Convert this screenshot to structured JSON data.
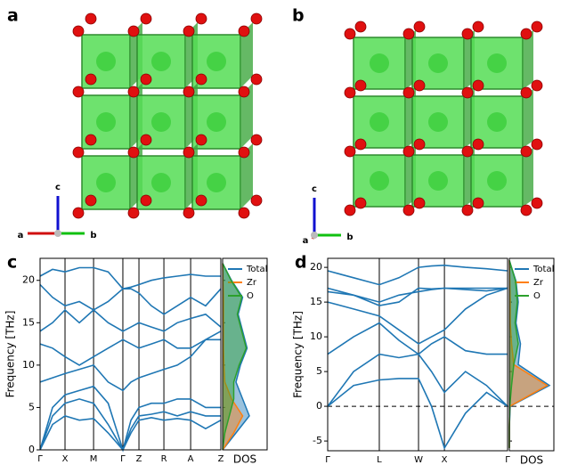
{
  "structures": [
    {
      "label": "a",
      "axes": [
        "c",
        "a",
        "b"
      ]
    },
    {
      "label": "b",
      "axes": [
        "c",
        "a",
        "b"
      ]
    }
  ],
  "chart_data": [
    {
      "type": "line",
      "panel_label": "c",
      "ylabel": "Frequency [THz]",
      "xlim": [
        0,
        1
      ],
      "ylim": [
        0,
        22.6
      ],
      "yticks": [
        0,
        5,
        10,
        15,
        20
      ],
      "zero_line": false,
      "xticks": [
        {
          "value": 0,
          "label": "Γ"
        },
        {
          "value": 0.138,
          "label": "X"
        },
        {
          "value": 0.296,
          "label": "M"
        },
        {
          "value": 0.458,
          "label": "Γ"
        },
        {
          "value": 0.547,
          "label": "Z"
        },
        {
          "value": 0.685,
          "label": "R"
        },
        {
          "value": 0.833,
          "label": "A"
        },
        {
          "value": 1,
          "label": "Z"
        }
      ],
      "x": [
        0,
        0.069,
        0.138,
        0.217,
        0.296,
        0.377,
        0.458,
        0.503,
        0.547,
        0.616,
        0.685,
        0.759,
        0.833,
        0.916,
        1
      ],
      "series": [
        {
          "color": "#1f77b4",
          "values": [
            0,
            3,
            4,
            3.5,
            3.7,
            2,
            0,
            2,
            3.5,
            3.8,
            3.5,
            3.7,
            3.5,
            2.5,
            3.5
          ]
        },
        {
          "color": "#1f77b4",
          "values": [
            0,
            4,
            5.5,
            6,
            5.5,
            3,
            0,
            2.5,
            4,
            4.2,
            4.5,
            4,
            4.5,
            4,
            4
          ]
        },
        {
          "color": "#1f77b4",
          "values": [
            0,
            5,
            6.5,
            7,
            7.5,
            5.5,
            0,
            3.5,
            5,
            5.5,
            5.5,
            6,
            6,
            5,
            5
          ]
        },
        {
          "color": "#1f77b4",
          "values": [
            8,
            8.5,
            9,
            9.5,
            10,
            8,
            7,
            8,
            8.5,
            9,
            9.5,
            10,
            11,
            13,
            14
          ]
        },
        {
          "color": "#1f77b4",
          "values": [
            12.5,
            12,
            11,
            10,
            11,
            12,
            13,
            12.5,
            12,
            12.5,
            13,
            12,
            12,
            13,
            13
          ]
        },
        {
          "color": "#1f77b4",
          "values": [
            14,
            15,
            16.5,
            15,
            16.5,
            15,
            14,
            14.5,
            15,
            14.5,
            14,
            15,
            15.5,
            16,
            14.5
          ]
        },
        {
          "color": "#1f77b4",
          "values": [
            19.5,
            18,
            17,
            17.5,
            16.5,
            17.5,
            19,
            19,
            18.5,
            17,
            16,
            17,
            18,
            17,
            19
          ]
        },
        {
          "color": "#1f77b4",
          "values": [
            20.5,
            21.3,
            21,
            21.5,
            21.5,
            21,
            19,
            19.2,
            19.5,
            20,
            20.3,
            20.5,
            20.7,
            20.5,
            20.5
          ]
        }
      ],
      "dos": {
        "xlabel": "DOS",
        "xlim": [
          0,
          100
        ],
        "y": [
          0,
          2,
          4,
          6,
          8,
          10,
          12,
          14,
          16,
          18,
          20,
          22
        ],
        "series": [
          {
            "name": "Total",
            "color": "#1f77b4",
            "values": [
              0,
              30,
              60,
              45,
              30,
              40,
              55,
              45,
              35,
              45,
              20,
              0
            ]
          },
          {
            "name": "Zr",
            "color": "#ff7f0e",
            "values": [
              0,
              25,
              45,
              20,
              5,
              3,
              2,
              2,
              2,
              2,
              1,
              0
            ]
          },
          {
            "name": "O",
            "color": "#2ca02c",
            "values": [
              0,
              5,
              15,
              25,
              25,
              37,
              53,
              43,
              33,
              43,
              19,
              0
            ]
          }
        ]
      }
    },
    {
      "type": "line",
      "panel_label": "d",
      "ylabel": "Frequency [THz]",
      "xlim": [
        0,
        1
      ],
      "ylim": [
        -6.4,
        21.3
      ],
      "yticks": [
        -5,
        0,
        5,
        10,
        15,
        20
      ],
      "zero_line": true,
      "xticks": [
        {
          "value": 0,
          "label": "Γ"
        },
        {
          "value": 0.287,
          "label": "L"
        },
        {
          "value": 0.505,
          "label": "W"
        },
        {
          "value": 0.649,
          "label": "X"
        },
        {
          "value": 1,
          "label": "Γ"
        }
      ],
      "x": [
        0,
        0.144,
        0.287,
        0.396,
        0.505,
        0.577,
        0.649,
        0.766,
        0.883,
        1
      ],
      "series": [
        {
          "color": "#1f77b4",
          "values": [
            0,
            3,
            3.8,
            4,
            4,
            0,
            -6,
            -1,
            2,
            0
          ]
        },
        {
          "color": "#1f77b4",
          "values": [
            0,
            5,
            7.5,
            7,
            7.5,
            5,
            2,
            5,
            3,
            0
          ]
        },
        {
          "color": "#1f77b4",
          "values": [
            7.5,
            10,
            12,
            9.5,
            7.5,
            9,
            10,
            8,
            7.5,
            7.5
          ]
        },
        {
          "color": "#1f77b4",
          "values": [
            15,
            14,
            13,
            11,
            9,
            10,
            11,
            14,
            16,
            17
          ]
        },
        {
          "color": "#1f77b4",
          "values": [
            17,
            16,
            15,
            16,
            16.5,
            16.8,
            17,
            17,
            17,
            17
          ]
        },
        {
          "color": "#1f77b4",
          "values": [
            19.5,
            18.5,
            17.5,
            18.5,
            20,
            20.2,
            20.3,
            20,
            19.8,
            19.5
          ]
        },
        {
          "color": "#1f77b4",
          "values": [
            16.5,
            16,
            14.5,
            15,
            17,
            16.9,
            17,
            16.8,
            16.6,
            17
          ]
        }
      ],
      "dos": {
        "xlabel": "DOS",
        "xlim": [
          0,
          100
        ],
        "y": [
          -6,
          -3,
          0,
          3,
          6,
          9,
          12,
          15,
          18,
          21
        ],
        "series": [
          {
            "name": "Total",
            "color": "#1f77b4",
            "values": [
              0,
              0,
              2,
              90,
              20,
              25,
              15,
              20,
              15,
              0
            ]
          },
          {
            "name": "Zr",
            "color": "#ff7f0e",
            "values": [
              0,
              0,
              1,
              85,
              10,
              5,
              2,
              2,
              1,
              0
            ]
          },
          {
            "name": "O",
            "color": "#2ca02c",
            "values": [
              0,
              0,
              1,
              5,
              10,
              20,
              13,
              18,
              14,
              0
            ]
          }
        ]
      }
    }
  ]
}
